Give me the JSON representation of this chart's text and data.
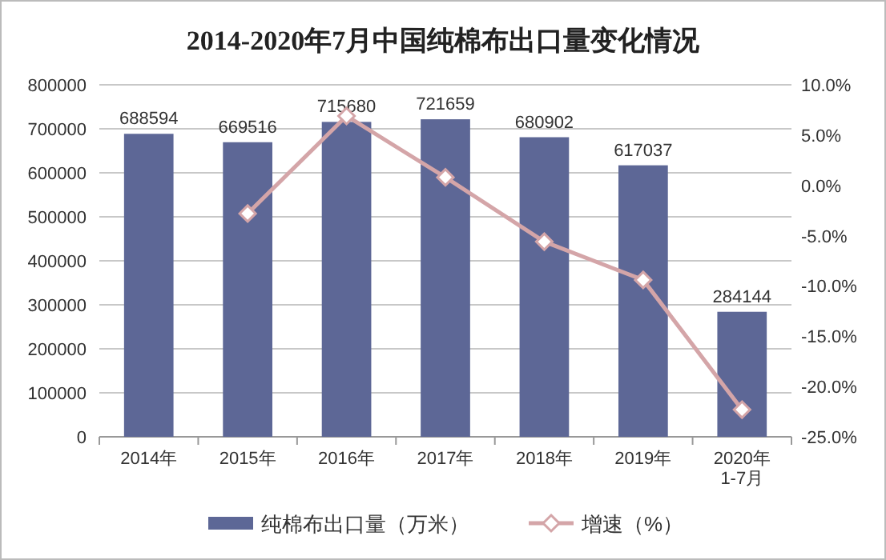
{
  "chart_data": {
    "type": "bar",
    "title": "2014-2020年7月中国纯棉布出口量变化情况",
    "categories": [
      "2014年",
      "2015年",
      "2016年",
      "2017年",
      "2018年",
      "2019年",
      "2020年\n1-7月"
    ],
    "series": [
      {
        "name": "纯棉布出口量（万米）",
        "color": "#5d6796",
        "values": [
          688594,
          669516,
          715680,
          721659,
          680902,
          617037,
          284144
        ],
        "value_labels": [
          "688594",
          "669516",
          "715680",
          "721659",
          "680902",
          "617037",
          "284144"
        ]
      },
      {
        "name": "增速（%）",
        "type": "line",
        "axis": "y2",
        "color": "#d4a5a8",
        "marker": "diamond",
        "values": [
          null,
          -2.8,
          6.9,
          0.8,
          -5.6,
          -9.4,
          -22.3
        ]
      }
    ],
    "ylim": [
      0,
      800000
    ],
    "yticks": [
      0,
      100000,
      200000,
      300000,
      400000,
      500000,
      600000,
      700000,
      800000
    ],
    "y2lim": [
      -25,
      10
    ],
    "y2ticks": [
      {
        "value": -25,
        "label": "-25.0%"
      },
      {
        "value": -20,
        "label": "-20.0%"
      },
      {
        "value": -15,
        "label": "-15.0%"
      },
      {
        "value": -10,
        "label": "-10.0%"
      },
      {
        "value": -5,
        "label": "-5.0%"
      },
      {
        "value": 0,
        "label": "0.0%"
      },
      {
        "value": 5,
        "label": "5.0%"
      },
      {
        "value": 10,
        "label": "10.0%"
      }
    ],
    "grid": "y",
    "legend": "bottom"
  }
}
